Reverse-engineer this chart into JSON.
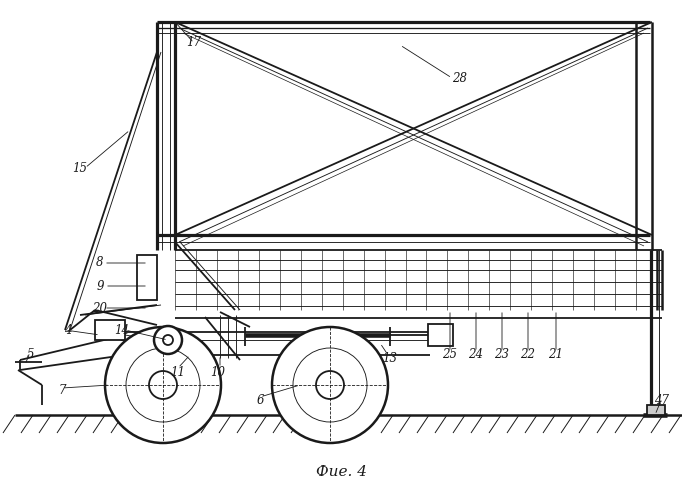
{
  "bg_color": "#ffffff",
  "line_color": "#1a1a1a",
  "fig_label": "Фие. 4",
  "lw": 1.3,
  "tlw": 0.65
}
